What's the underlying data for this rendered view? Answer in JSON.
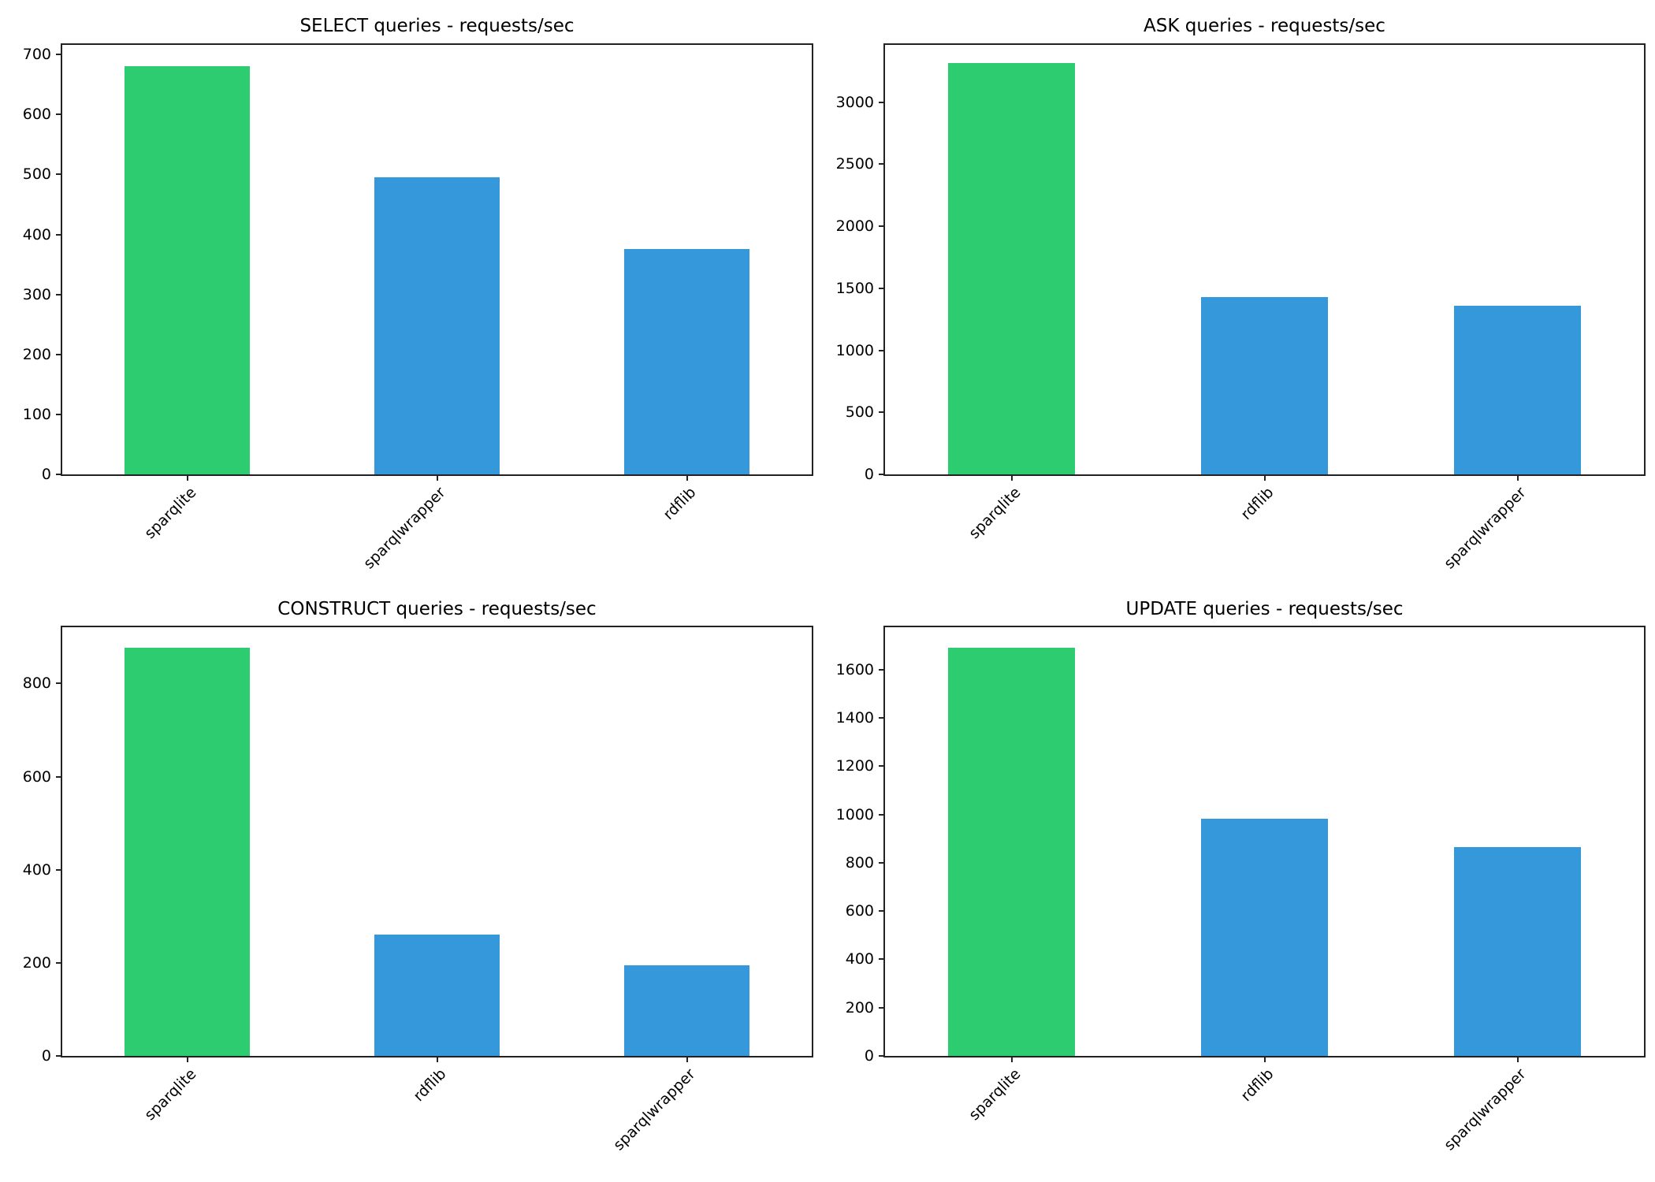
{
  "figure": {
    "colors": {
      "highlight": "#2ecc71",
      "default": "#3498db",
      "axis": "#222222"
    }
  },
  "chart_data": [
    {
      "type": "bar",
      "title": "SELECT queries - requests/sec",
      "xlabel": "",
      "ylabel": "",
      "categories": [
        "sparqlite",
        "sparqlwrapper",
        "rdflib"
      ],
      "values": [
        681,
        495,
        376
      ],
      "bar_colors": [
        "#2ecc71",
        "#3498db",
        "#3498db"
      ],
      "yticks": [
        0,
        100,
        200,
        300,
        400,
        500,
        600,
        700
      ],
      "ylim": [
        0,
        716
      ],
      "grid": false
    },
    {
      "type": "bar",
      "title": "ASK queries - requests/sec",
      "xlabel": "",
      "ylabel": "",
      "categories": [
        "sparqlite",
        "rdflib",
        "sparqlwrapper"
      ],
      "values": [
        3318,
        1430,
        1361
      ],
      "bar_colors": [
        "#2ecc71",
        "#3498db",
        "#3498db"
      ],
      "yticks": [
        0,
        500,
        1000,
        1500,
        2000,
        2500,
        3000
      ],
      "ylim": [
        0,
        3462
      ],
      "grid": false
    },
    {
      "type": "bar",
      "title": "CONSTRUCT queries - requests/sec",
      "xlabel": "",
      "ylabel": "",
      "categories": [
        "sparqlite",
        "rdflib",
        "sparqlwrapper"
      ],
      "values": [
        877,
        260,
        194
      ],
      "bar_colors": [
        "#2ecc71",
        "#3498db",
        "#3498db"
      ],
      "yticks": [
        0,
        200,
        400,
        600,
        800
      ],
      "ylim": [
        0,
        921
      ],
      "grid": false
    },
    {
      "type": "bar",
      "title": "UPDATE queries - requests/sec",
      "xlabel": "",
      "ylabel": "",
      "categories": [
        "sparqlite",
        "rdflib",
        "sparqlwrapper"
      ],
      "values": [
        1691,
        984,
        866
      ],
      "bar_colors": [
        "#2ecc71",
        "#3498db",
        "#3498db"
      ],
      "yticks": [
        0,
        200,
        400,
        600,
        800,
        1000,
        1200,
        1400,
        1600
      ],
      "ylim": [
        0,
        1776
      ],
      "grid": false
    }
  ]
}
